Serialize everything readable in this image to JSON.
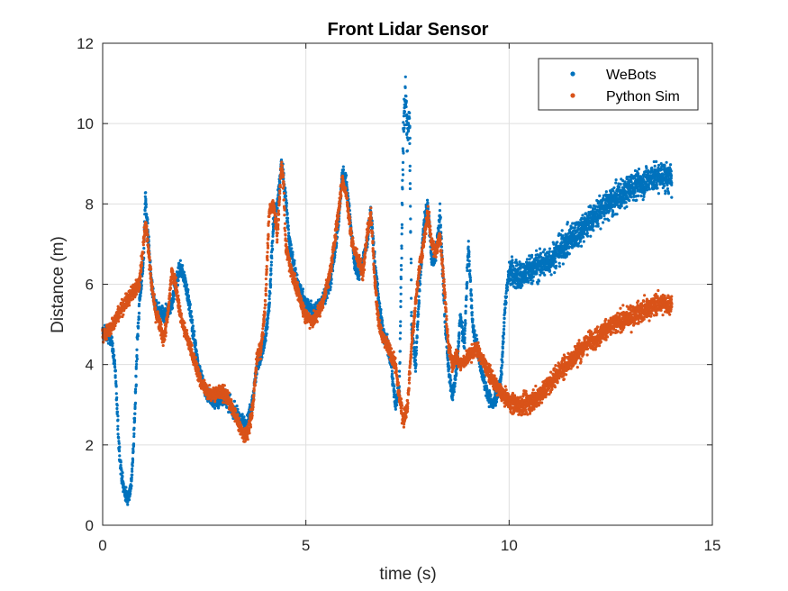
{
  "chart_data": {
    "type": "scatter",
    "title": "Front Lidar Sensor",
    "xlabel": "time (s)",
    "ylabel": "Distance (m)",
    "xlim": [
      0,
      15
    ],
    "ylim": [
      0,
      12
    ],
    "xticks": [
      0,
      5,
      10,
      15
    ],
    "yticks": [
      0,
      2,
      4,
      6,
      8,
      10,
      12
    ],
    "grid": true,
    "legend_position": "top-right",
    "series": [
      {
        "name": "WeBots",
        "color": "#0072BD",
        "points": [
          [
            0.0,
            4.8
          ],
          [
            0.2,
            4.7
          ],
          [
            0.3,
            4.0
          ],
          [
            0.35,
            3.0
          ],
          [
            0.4,
            2.0
          ],
          [
            0.45,
            1.4
          ],
          [
            0.5,
            1.0
          ],
          [
            0.55,
            0.8
          ],
          [
            0.6,
            0.7
          ],
          [
            0.65,
            0.75
          ],
          [
            0.7,
            1.0
          ],
          [
            0.75,
            1.8
          ],
          [
            0.8,
            3.0
          ],
          [
            0.85,
            4.5
          ],
          [
            0.9,
            5.5
          ],
          [
            1.0,
            6.5
          ],
          [
            1.05,
            8.2
          ],
          [
            1.1,
            7.5
          ],
          [
            1.2,
            6.0
          ],
          [
            1.3,
            5.4
          ],
          [
            1.5,
            5.2
          ],
          [
            1.7,
            5.5
          ],
          [
            1.8,
            6.0
          ],
          [
            1.9,
            6.4
          ],
          [
            2.0,
            6.2
          ],
          [
            2.1,
            5.7
          ],
          [
            2.2,
            5.0
          ],
          [
            2.35,
            4.0
          ],
          [
            2.5,
            3.4
          ],
          [
            2.7,
            3.1
          ],
          [
            2.9,
            3.1
          ],
          [
            3.0,
            3.2
          ],
          [
            3.2,
            2.9
          ],
          [
            3.4,
            2.6
          ],
          [
            3.55,
            2.5
          ],
          [
            3.7,
            3.2
          ],
          [
            3.8,
            4.0
          ],
          [
            3.9,
            4.2
          ],
          [
            4.0,
            4.6
          ],
          [
            4.1,
            5.5
          ],
          [
            4.2,
            7.5
          ],
          [
            4.3,
            8.0
          ],
          [
            4.4,
            9.0
          ],
          [
            4.5,
            8.2
          ],
          [
            4.6,
            7.0
          ],
          [
            4.8,
            6.0
          ],
          [
            5.0,
            5.5
          ],
          [
            5.2,
            5.3
          ],
          [
            5.4,
            5.6
          ],
          [
            5.6,
            6.0
          ],
          [
            5.8,
            7.5
          ],
          [
            5.9,
            8.8
          ],
          [
            6.0,
            8.5
          ],
          [
            6.1,
            7.5
          ],
          [
            6.2,
            6.5
          ],
          [
            6.3,
            6.2
          ],
          [
            6.5,
            7.0
          ],
          [
            6.6,
            7.8
          ],
          [
            6.7,
            6.5
          ],
          [
            6.8,
            5.5
          ],
          [
            6.9,
            4.8
          ],
          [
            7.0,
            4.5
          ],
          [
            7.1,
            4.0
          ],
          [
            7.2,
            3.0
          ],
          [
            7.3,
            3.4
          ],
          [
            7.4,
            10.0
          ],
          [
            7.45,
            10.8
          ],
          [
            7.5,
            9.6
          ],
          [
            7.55,
            10.2
          ],
          [
            7.6,
            5.0
          ],
          [
            7.7,
            4.0
          ],
          [
            7.8,
            6.0
          ],
          [
            7.9,
            7.5
          ],
          [
            8.0,
            8.0
          ],
          [
            8.1,
            6.5
          ],
          [
            8.2,
            6.8
          ],
          [
            8.3,
            7.8
          ],
          [
            8.4,
            5.5
          ],
          [
            8.5,
            4.0
          ],
          [
            8.6,
            3.2
          ],
          [
            8.7,
            3.8
          ],
          [
            8.8,
            5.2
          ],
          [
            8.9,
            4.5
          ],
          [
            9.0,
            7.0
          ],
          [
            9.1,
            5.0
          ],
          [
            9.2,
            4.5
          ],
          [
            9.3,
            4.0
          ],
          [
            9.4,
            3.5
          ],
          [
            9.5,
            3.2
          ],
          [
            9.6,
            3.0
          ],
          [
            9.7,
            3.2
          ],
          [
            9.8,
            3.6
          ],
          [
            9.9,
            5.5
          ],
          [
            10.0,
            6.3
          ],
          [
            10.3,
            6.2
          ],
          [
            10.6,
            6.4
          ],
          [
            11.0,
            6.6
          ],
          [
            11.4,
            7.0
          ],
          [
            11.8,
            7.4
          ],
          [
            12.2,
            7.8
          ],
          [
            12.6,
            8.1
          ],
          [
            13.0,
            8.4
          ],
          [
            13.4,
            8.6
          ],
          [
            13.8,
            8.7
          ],
          [
            14.0,
            8.6
          ]
        ]
      },
      {
        "name": "Python Sim",
        "color": "#D95319",
        "points": [
          [
            0.0,
            4.7
          ],
          [
            0.2,
            4.9
          ],
          [
            0.4,
            5.3
          ],
          [
            0.6,
            5.6
          ],
          [
            0.8,
            5.9
          ],
          [
            0.9,
            6.0
          ],
          [
            1.0,
            7.0
          ],
          [
            1.05,
            7.5
          ],
          [
            1.1,
            7.2
          ],
          [
            1.2,
            6.0
          ],
          [
            1.3,
            5.3
          ],
          [
            1.4,
            5.0
          ],
          [
            1.5,
            4.6
          ],
          [
            1.6,
            5.2
          ],
          [
            1.7,
            6.3
          ],
          [
            1.8,
            6.0
          ],
          [
            1.9,
            5.3
          ],
          [
            2.0,
            4.9
          ],
          [
            2.1,
            4.6
          ],
          [
            2.2,
            4.3
          ],
          [
            2.4,
            3.6
          ],
          [
            2.6,
            3.3
          ],
          [
            2.8,
            3.3
          ],
          [
            3.0,
            3.3
          ],
          [
            3.2,
            2.9
          ],
          [
            3.4,
            2.4
          ],
          [
            3.5,
            2.2
          ],
          [
            3.6,
            2.4
          ],
          [
            3.7,
            3.0
          ],
          [
            3.8,
            4.2
          ],
          [
            3.9,
            4.4
          ],
          [
            4.0,
            5.5
          ],
          [
            4.1,
            7.8
          ],
          [
            4.2,
            8.0
          ],
          [
            4.3,
            7.2
          ],
          [
            4.4,
            9.0
          ],
          [
            4.45,
            8.5
          ],
          [
            4.5,
            7.0
          ],
          [
            4.6,
            6.5
          ],
          [
            4.8,
            5.8
          ],
          [
            5.0,
            5.2
          ],
          [
            5.2,
            5.1
          ],
          [
            5.4,
            5.5
          ],
          [
            5.6,
            6.3
          ],
          [
            5.8,
            7.8
          ],
          [
            5.9,
            8.6
          ],
          [
            6.0,
            8.2
          ],
          [
            6.1,
            7.3
          ],
          [
            6.2,
            6.8
          ],
          [
            6.3,
            6.6
          ],
          [
            6.4,
            6.3
          ],
          [
            6.5,
            7.2
          ],
          [
            6.6,
            7.8
          ],
          [
            6.7,
            6.0
          ],
          [
            6.8,
            5.0
          ],
          [
            6.9,
            4.6
          ],
          [
            7.0,
            4.5
          ],
          [
            7.1,
            4.2
          ],
          [
            7.2,
            4.0
          ],
          [
            7.3,
            3.2
          ],
          [
            7.4,
            2.6
          ],
          [
            7.5,
            3.0
          ],
          [
            7.6,
            4.5
          ],
          [
            7.7,
            5.5
          ],
          [
            7.8,
            6.5
          ],
          [
            7.9,
            7.0
          ],
          [
            8.0,
            7.8
          ],
          [
            8.1,
            7.0
          ],
          [
            8.2,
            6.8
          ],
          [
            8.3,
            7.2
          ],
          [
            8.4,
            6.0
          ],
          [
            8.5,
            4.5
          ],
          [
            8.6,
            4.0
          ],
          [
            8.7,
            4.2
          ],
          [
            8.8,
            4.0
          ],
          [
            9.0,
            4.2
          ],
          [
            9.2,
            4.4
          ],
          [
            9.4,
            4.0
          ],
          [
            9.6,
            3.6
          ],
          [
            9.8,
            3.3
          ],
          [
            10.0,
            3.1
          ],
          [
            10.2,
            3.0
          ],
          [
            10.4,
            3.0
          ],
          [
            10.6,
            3.1
          ],
          [
            10.8,
            3.3
          ],
          [
            11.0,
            3.5
          ],
          [
            11.2,
            3.8
          ],
          [
            11.4,
            4.0
          ],
          [
            11.6,
            4.2
          ],
          [
            11.8,
            4.4
          ],
          [
            12.0,
            4.6
          ],
          [
            12.2,
            4.7
          ],
          [
            12.4,
            4.9
          ],
          [
            12.6,
            5.0
          ],
          [
            12.8,
            5.1
          ],
          [
            13.0,
            5.2
          ],
          [
            13.2,
            5.3
          ],
          [
            13.4,
            5.4
          ],
          [
            13.6,
            5.5
          ],
          [
            13.8,
            5.5
          ],
          [
            14.0,
            5.5
          ]
        ]
      }
    ],
    "annotations": []
  }
}
